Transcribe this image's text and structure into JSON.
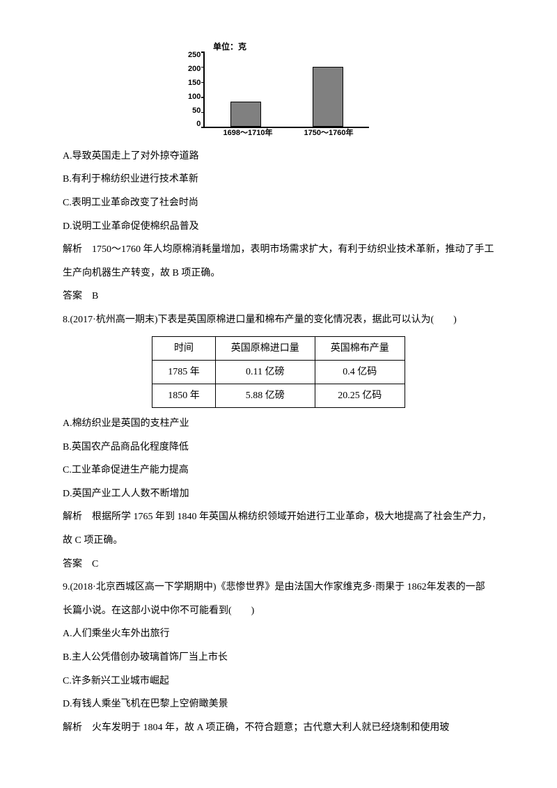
{
  "chart": {
    "unit_label": "单位：克",
    "y_ticks": [
      "250",
      "200",
      "150",
      "100",
      "50",
      "0"
    ],
    "y_max": 250,
    "bars": [
      {
        "label": "1698～1710年",
        "value": 85
      },
      {
        "label": "1750～1760年",
        "value": 200
      }
    ],
    "bar_color": "#808080",
    "axis_color": "#000000",
    "background": "#ffffff"
  },
  "q7": {
    "optA": "A.导致英国走上了对外掠夺道路",
    "optB": "B.有利于棉纺织业进行技术革新",
    "optC": "C.表明工业革命改变了社会时尚",
    "optD": "D.说明工业革命促使棉织品普及",
    "explain": "解析　1750～1760 年人均原棉消耗量增加，表明市场需求扩大，有利于纺织业技术革新，推动了手工生产向机器生产转变，故 B 项正确。",
    "answer": "答案　B"
  },
  "q8": {
    "stem": "8.(2017·杭州高一期末)下表是英国原棉进口量和棉布产量的变化情况表，据此可以认为(　　)",
    "table": {
      "header": [
        "时间",
        "英国原棉进口量",
        "英国棉布产量"
      ],
      "rows": [
        [
          "1785 年",
          "0.11 亿磅",
          "0.4 亿码"
        ],
        [
          "1850 年",
          "5.88 亿磅",
          "20.25 亿码"
        ]
      ]
    },
    "optA": "A.棉纺织业是英国的支柱产业",
    "optB": "B.英国农产品商品化程度降低",
    "optC": "C.工业革命促进生产能力提高",
    "optD": "D.英国产业工人人数不断增加",
    "explain": "解析　根据所学 1765 年到 1840 年英国从棉纺织领域开始进行工业革命，极大地提高了社会生产力，故 C 项正确。",
    "answer": "答案　C"
  },
  "q9": {
    "stem": "9.(2018·北京西城区高一下学期期中)《悲惨世界》是由法国大作家维克多·雨果于 1862年发表的一部长篇小说。在这部小说中你不可能看到(　　)",
    "optA": "A.人们乘坐火车外出旅行",
    "optB": "B.主人公凭借创办玻璃首饰厂当上市长",
    "optC": "C.许多新兴工业城市崛起",
    "optD": "D.有钱人乘坐飞机在巴黎上空俯瞰美景",
    "explain": "解析　火车发明于 1804 年，故 A 项正确，不符合题意；古代意大利人就已经烧制和使用玻"
  }
}
